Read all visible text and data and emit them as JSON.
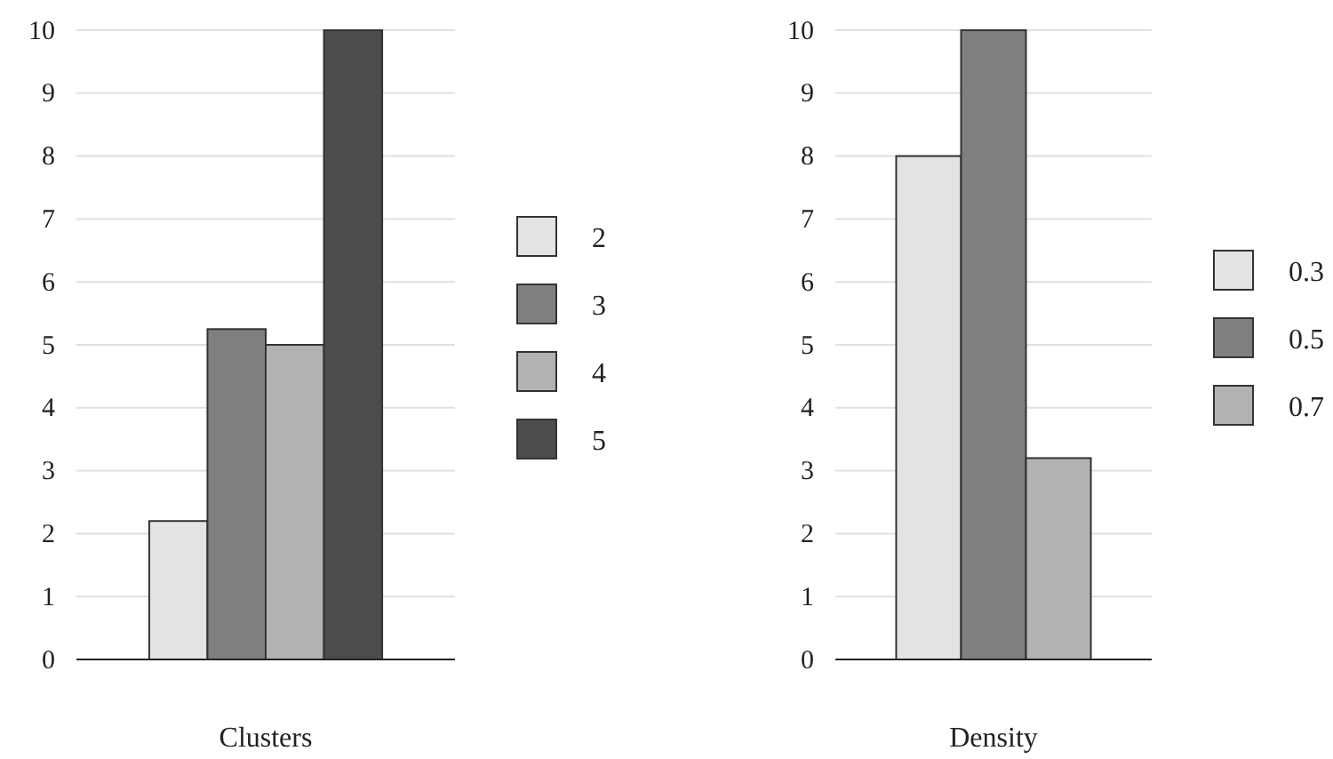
{
  "chart_data": [
    {
      "type": "bar",
      "xlabel": "Clusters",
      "categories": [
        null
      ],
      "ylim": [
        0,
        10
      ],
      "yticks": [
        0,
        1,
        2,
        3,
        4,
        5,
        6,
        7,
        8,
        9,
        10
      ],
      "grid": "y",
      "legend": "right",
      "series": [
        {
          "name": "2",
          "color": "#e3e3e3",
          "values": [
            2.2
          ]
        },
        {
          "name": "3",
          "color": "#7f7f7f",
          "values": [
            5.25
          ]
        },
        {
          "name": "4",
          "color": "#b2b2b2",
          "values": [
            5.0
          ]
        },
        {
          "name": "5",
          "color": "#4c4c4c",
          "values": [
            10
          ]
        }
      ]
    },
    {
      "type": "bar",
      "xlabel": "Density",
      "categories": [
        null
      ],
      "ylim": [
        0,
        10
      ],
      "yticks": [
        0,
        1,
        2,
        3,
        4,
        5,
        6,
        7,
        8,
        9,
        10
      ],
      "grid": "y",
      "legend": "right",
      "series": [
        {
          "name": "0.3",
          "color": "#e3e3e3",
          "values": [
            8
          ]
        },
        {
          "name": "0.5",
          "color": "#7f7f7f",
          "values": [
            10
          ]
        },
        {
          "name": "0.7",
          "color": "#b2b2b2",
          "values": [
            3.2
          ]
        }
      ]
    }
  ]
}
